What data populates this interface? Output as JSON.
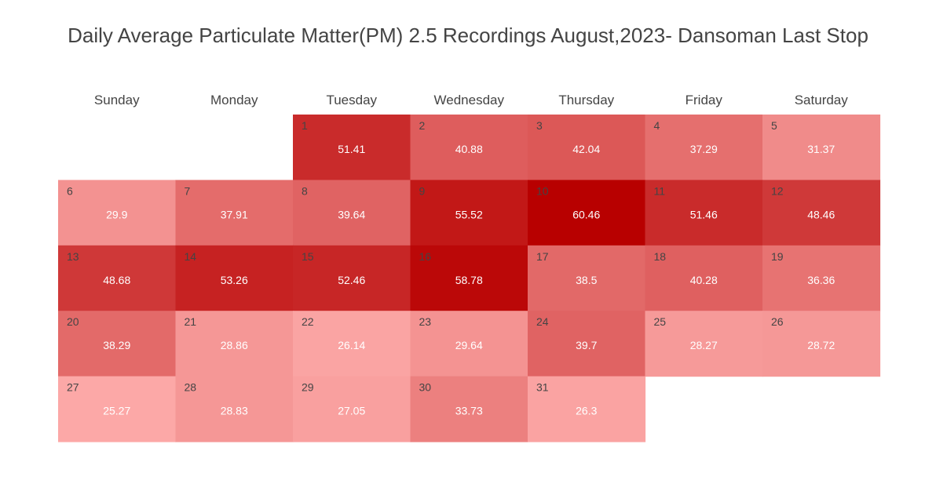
{
  "chart_data": {
    "type": "heatmap",
    "title": "Daily Average Particulate Matter(PM) 2.5 Recordings August,2023- Dansoman Last Stop",
    "columns": [
      "Sunday",
      "Monday",
      "Tuesday",
      "Wednesday",
      "Thursday",
      "Friday",
      "Saturday"
    ],
    "first_weekday_index": 2,
    "days": [
      1,
      2,
      3,
      4,
      5,
      6,
      7,
      8,
      9,
      10,
      11,
      12,
      13,
      14,
      15,
      16,
      17,
      18,
      19,
      20,
      21,
      22,
      23,
      24,
      25,
      26,
      27,
      28,
      29,
      30,
      31
    ],
    "values": [
      51.41,
      40.88,
      42.04,
      37.29,
      31.37,
      29.9,
      37.91,
      39.64,
      55.52,
      60.46,
      51.46,
      48.46,
      48.68,
      53.26,
      52.46,
      58.78,
      38.5,
      40.28,
      36.36,
      38.29,
      28.86,
      26.14,
      29.64,
      39.7,
      28.27,
      28.72,
      25.27,
      28.83,
      27.05,
      33.73,
      26.3
    ],
    "color_scale": {
      "low": "#fca8a7",
      "high": "#b80000"
    }
  }
}
